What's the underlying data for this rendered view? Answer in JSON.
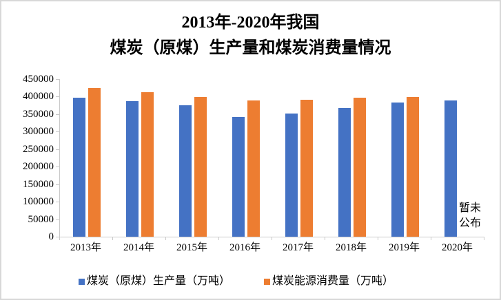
{
  "frame": {
    "background": "#ffffff",
    "border_color": "#d8d8d8"
  },
  "chart_data": {
    "type": "bar",
    "title": "2013年-2020年我国煤炭（原煤）生产量和煤炭消费量情况",
    "title_lines": [
      "2013年-2020年我国",
      "煤炭（原煤）生产量和煤炭消费量情况"
    ],
    "categories": [
      "2013年",
      "2014年",
      "2015年",
      "2016年",
      "2017年",
      "2018年",
      "2019年",
      "2020年"
    ],
    "series": [
      {
        "name": "煤炭（原煤）生产量（万吨）",
        "color": "#4472C4",
        "values": [
          397000,
          387000,
          375000,
          341000,
          352000,
          368000,
          384000,
          390000
        ]
      },
      {
        "name": "煤炭能源消费量（万吨）",
        "color": "#ED7D31",
        "values": [
          424000,
          413000,
          398000,
          389000,
          392000,
          397000,
          398000,
          null
        ]
      }
    ],
    "xlabel": "",
    "ylabel": "",
    "ylim": [
      0,
      450000
    ],
    "ytick_step": 50000,
    "ytick_labels": [
      "450000",
      "400000",
      "350000",
      "300000",
      "250000",
      "200000",
      "150000",
      "100000",
      "50000",
      "0"
    ],
    "grid": false,
    "legend_position": "bottom",
    "annotation": {
      "lines": [
        "暂未",
        "公布"
      ],
      "target_category": "2020年"
    },
    "axis_color": "#c9c9c9"
  }
}
